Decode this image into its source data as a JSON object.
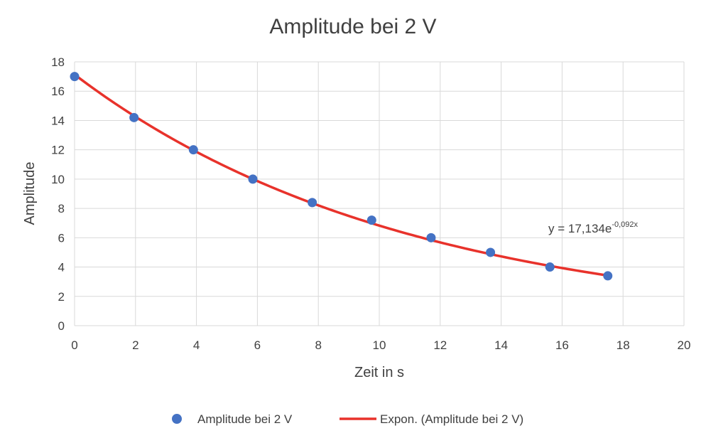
{
  "chart_data": {
    "type": "scatter",
    "title": "Amplitude bei 2 V",
    "xlabel": "Zeit in s",
    "ylabel": "Amplitude",
    "xlim": [
      0,
      20
    ],
    "ylim": [
      0,
      18
    ],
    "x_ticks": [
      "0",
      "2",
      "4",
      "6",
      "8",
      "10",
      "12",
      "14",
      "16",
      "18",
      "20"
    ],
    "y_ticks": [
      "0",
      "2",
      "4",
      "6",
      "8",
      "10",
      "12",
      "14",
      "16",
      "18"
    ],
    "grid": true,
    "legend_position": "bottom",
    "series": [
      {
        "name": "Amplitude bei 2 V",
        "color": "#4472C4",
        "x": [
          0,
          1.95,
          3.9,
          5.85,
          7.8,
          9.75,
          11.7,
          13.65,
          15.6,
          17.5
        ],
        "y": [
          17.0,
          14.2,
          12.0,
          10.0,
          8.4,
          7.2,
          6.0,
          5.0,
          4.0,
          3.4
        ]
      }
    ],
    "trendline": {
      "name": "Expon. (Amplitude bei 2 V)",
      "type": "exponential",
      "color": "#E8322B",
      "a": 17.134,
      "b": -0.092,
      "x_range": [
        0,
        17.5
      ],
      "equation_prefix": "y = 17,134e",
      "equation_exponent": "-0,092x"
    }
  }
}
